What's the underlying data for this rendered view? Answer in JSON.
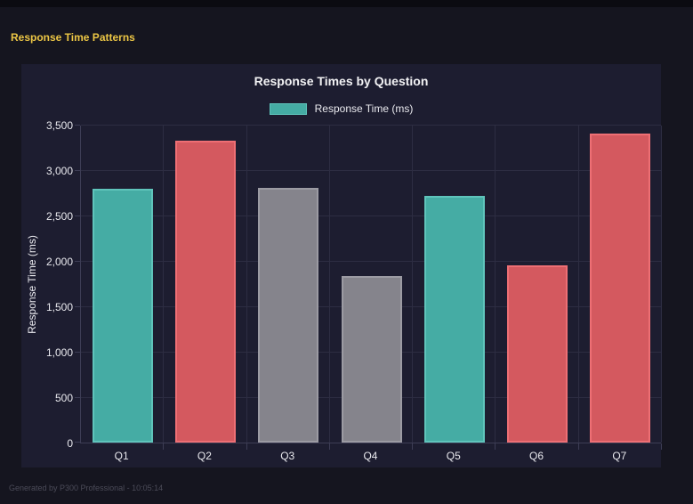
{
  "page": {
    "heading": "Response Time Patterns",
    "footer": "Generated by P300 Professional - 10:05:14"
  },
  "chart_data": {
    "type": "bar",
    "title": "Response Times by Question",
    "legend_label": "Response Time (ms)",
    "legend_position": "top",
    "categories": [
      "Q1",
      "Q2",
      "Q3",
      "Q4",
      "Q5",
      "Q6",
      "Q7"
    ],
    "values": [
      2790,
      3325,
      2805,
      1835,
      2720,
      1955,
      3405
    ],
    "bar_colors": [
      "#45aca4",
      "#d4595f",
      "#85848c",
      "#85848c",
      "#45aca4",
      "#d4595f",
      "#d4595f"
    ],
    "bar_border_colors": [
      "#5fc4bb",
      "#ee6f74",
      "#9c9ba3",
      "#9c9ba3",
      "#5fc4bb",
      "#ee6f74",
      "#ee6f74"
    ],
    "xlabel": "",
    "ylabel": "Response Time (ms)",
    "ylim": [
      0,
      3500
    ],
    "ytick_step": 500,
    "grid": true
  },
  "colors": {
    "outer_background": "#15151f",
    "top_strip": "#0b0b11",
    "panel_background": "#1d1d30",
    "gridline": "#2d2d42",
    "axis_line": "#3d3d55",
    "tick_text": "#e9e9ee",
    "chart_title_text": "#f2f2f4",
    "heading_text": "#ecc645",
    "footer_text": "#4b4b58",
    "legend_swatch": "#45aca4"
  }
}
